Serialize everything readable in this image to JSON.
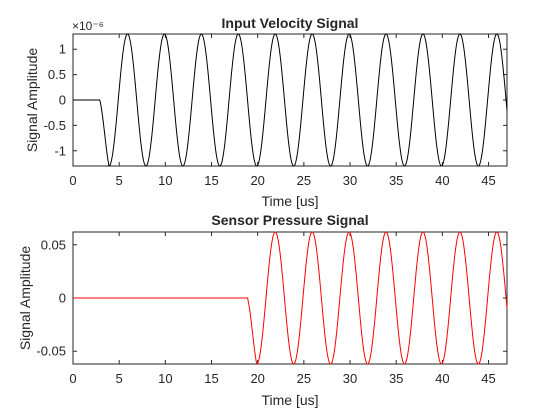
{
  "chart_data": [
    {
      "type": "line",
      "title": "Input Velocity Signal",
      "xlabel": "Time [us]",
      "ylabel": "Signal Amplitude",
      "xlim": [
        0,
        47
      ],
      "ylim": [
        -1.3,
        1.3
      ],
      "y_exponent_label": "×10⁻⁶",
      "y_scale_factor": 1e-06,
      "x_ticks": [
        0,
        5,
        10,
        15,
        20,
        25,
        30,
        35,
        40,
        45
      ],
      "y_ticks": [
        -1,
        -0.5,
        0,
        0.5,
        1
      ],
      "grid": false,
      "series": [
        {
          "color": "#000000",
          "signal": {
            "kind": "tone_burst",
            "amplitude": 1.3,
            "onset_us": 2.9,
            "period_us": 4.0,
            "end_us": 47
          }
        }
      ]
    },
    {
      "type": "line",
      "title": "Sensor Pressure Signal",
      "xlabel": "Time [us]",
      "ylabel": "Signal Amplitude",
      "xlim": [
        0,
        47
      ],
      "ylim": [
        -0.062,
        0.062
      ],
      "x_ticks": [
        0,
        5,
        10,
        15,
        20,
        25,
        30,
        35,
        40,
        45
      ],
      "y_ticks": [
        -0.05,
        0,
        0.05
      ],
      "grid": false,
      "series": [
        {
          "color": "#ff0000",
          "signal": {
            "kind": "tone_burst",
            "amplitude": 0.062,
            "onset_us": 18.9,
            "period_us": 4.0,
            "end_us": 47
          }
        }
      ]
    }
  ]
}
